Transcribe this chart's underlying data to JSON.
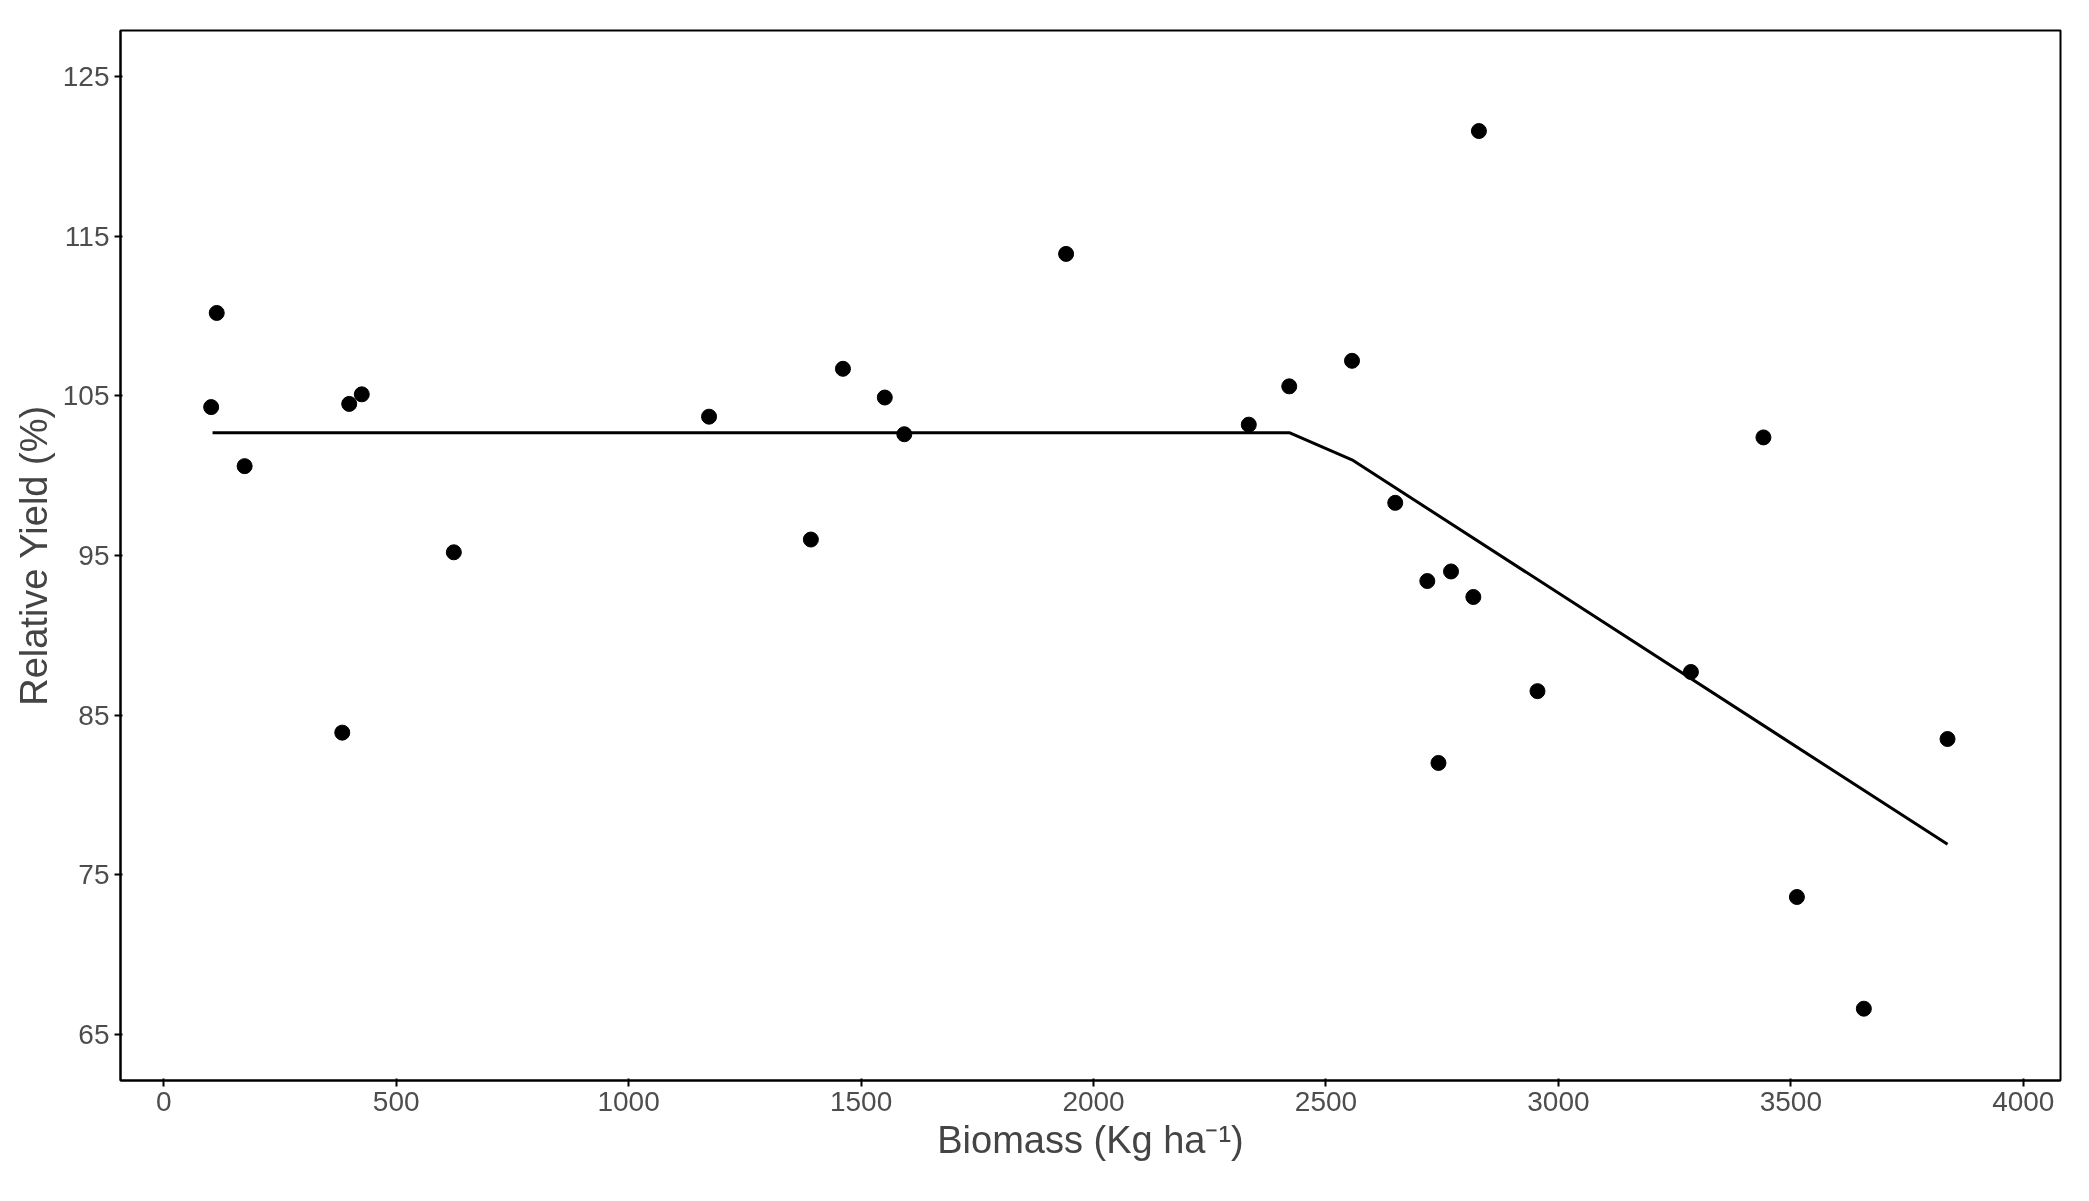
{
  "chart_data": {
    "type": "scatter",
    "xlabel": "Biomass (Kg ha⁻¹)",
    "ylabel": "Relative Yield (%)",
    "xlim": [
      -93,
      4080
    ],
    "ylim": [
      62.1,
      127.9
    ],
    "xticks": [
      0,
      500,
      1000,
      1500,
      2000,
      2500,
      3000,
      3500,
      4000
    ],
    "yticks": [
      65,
      75,
      85,
      95,
      105,
      115,
      125
    ],
    "grid": false,
    "series": [
      {
        "marker": "circle",
        "color": "#000000",
        "x": [
          102,
          114,
          174,
          384,
          399,
          426,
          624,
          1173,
          1392,
          1461,
          1551,
          1593,
          1941,
          2334,
          2421,
          2556,
          2649,
          2718,
          2742,
          2769,
          2817,
          2829,
          2955,
          3285,
          3441,
          3513,
          3657,
          3837
        ],
        "values": [
          104.3,
          110.2,
          100.6,
          83.9,
          104.5,
          105.1,
          95.2,
          103.7,
          96.0,
          106.7,
          104.9,
          102.6,
          113.9,
          103.2,
          105.6,
          107.2,
          98.3,
          93.4,
          82.0,
          94.0,
          92.4,
          121.6,
          86.5,
          87.7,
          102.4,
          73.6,
          66.6,
          83.5
        ]
      },
      {
        "type": "line",
        "color": "#000000",
        "line_style": "solid",
        "x": [
          105,
          2421,
          2556,
          3837
        ],
        "values": [
          102.7,
          102.7,
          101.0,
          76.9
        ]
      }
    ]
  }
}
